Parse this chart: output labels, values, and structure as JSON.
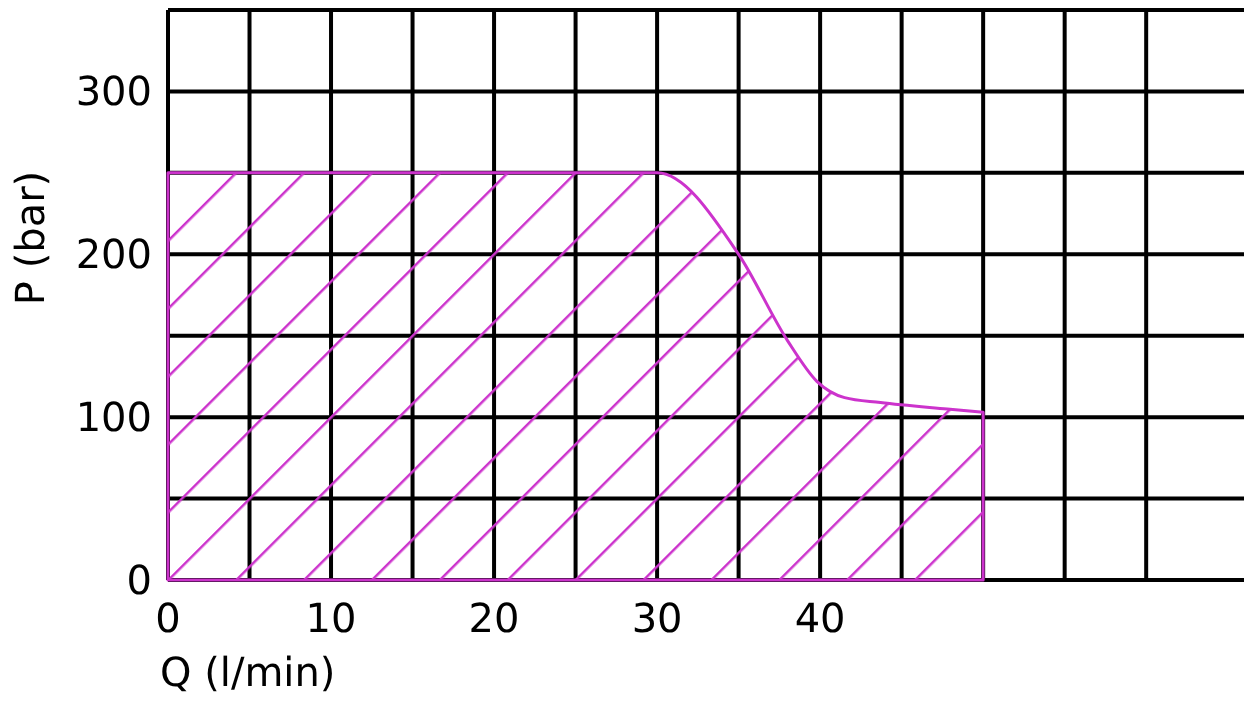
{
  "chart_data": {
    "type": "area",
    "xlabel": "Q (l/min)",
    "ylabel": "P (bar)",
    "series": [
      {
        "color": "#cc33cc",
        "x": [
          0,
          30,
          35,
          38,
          39.8,
          41.5,
          43.7,
          47.8,
          50
        ],
        "values": [
          250,
          250,
          200,
          147,
          122,
          112,
          109,
          105,
          103
        ]
      }
    ],
    "xlim": [
      0,
      66
    ],
    "ylim": [
      0,
      350
    ],
    "xticks": [
      0,
      {
        "value": 5,
        "label": null
      },
      10,
      {
        "value": 15,
        "label": null
      },
      20,
      {
        "value": 25,
        "label": null
      },
      30,
      {
        "value": 35,
        "label": null
      },
      40,
      {
        "value": 45,
        "label": null
      },
      {
        "value": 50,
        "label": null
      },
      {
        "value": 55,
        "label": null
      },
      {
        "value": 60,
        "label": null
      }
    ],
    "yticks": [
      0,
      {
        "value": 50,
        "label": null
      },
      100,
      {
        "value": 150,
        "label": null
      },
      200,
      {
        "value": 250,
        "label": null
      },
      300
    ],
    "grid": true
  }
}
